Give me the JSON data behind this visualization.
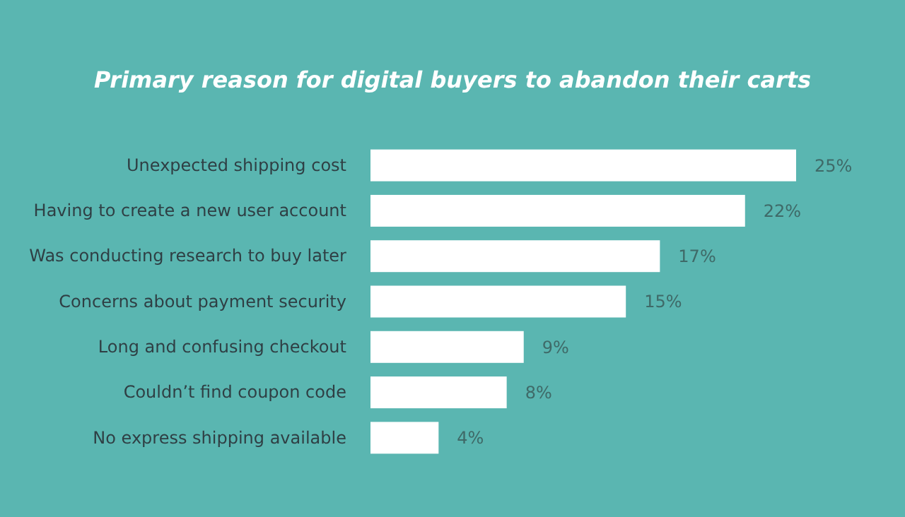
{
  "chart_data": {
    "type": "bar",
    "orientation": "horizontal",
    "title": "Primary reason for digital buyers to abandon their carts",
    "categories": [
      "Unexpected shipping cost",
      "Having to create a new user account",
      "Was conducting research to buy later",
      "Concerns about payment security",
      "Long and confusing checkout",
      "Couldn’t find coupon code",
      "No express shipping available"
    ],
    "values": [
      25,
      22,
      17,
      15,
      9,
      8,
      4
    ],
    "value_labels": [
      "25%",
      "22%",
      "17%",
      "15%",
      "9%",
      "8%",
      "4%"
    ],
    "color": "#ffffff",
    "tick_labels": "y"
  }
}
